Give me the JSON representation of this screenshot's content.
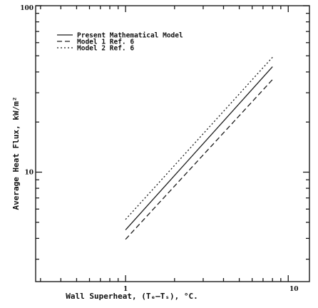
{
  "chart_data": {
    "type": "line",
    "title": "",
    "xlabel": "Wall Superheat, (Tₑ–Tₛ), °C.",
    "ylabel": "Average Heat Flux, kW/m²",
    "x_scale": "log",
    "y_scale": "log",
    "xlim": [
      0.28,
      13.5
    ],
    "ylim": [
      2.2,
      100
    ],
    "x_ticks": [
      1,
      10
    ],
    "x_tick_labels": [
      "1",
      "10"
    ],
    "y_ticks": [
      10,
      100
    ],
    "y_tick_labels": [
      "10",
      "100"
    ],
    "grid": false,
    "legend_position": "top-left",
    "series": [
      {
        "name": "Present Mathematical Model",
        "dash": "solid",
        "color": "#1a1a1a",
        "x": [
          1.0,
          8.0
        ],
        "y": [
          4.5,
          43.0
        ]
      },
      {
        "name": "Model 1 Ref. 6",
        "dash": "dashed",
        "color": "#1a1a1a",
        "x": [
          1.0,
          8.0
        ],
        "y": [
          3.95,
          36.0
        ]
      },
      {
        "name": "Model 2 Ref. 6",
        "dash": "dotted",
        "color": "#1a1a1a",
        "x": [
          1.0,
          8.0
        ],
        "y": [
          5.2,
          49.0
        ]
      }
    ]
  }
}
